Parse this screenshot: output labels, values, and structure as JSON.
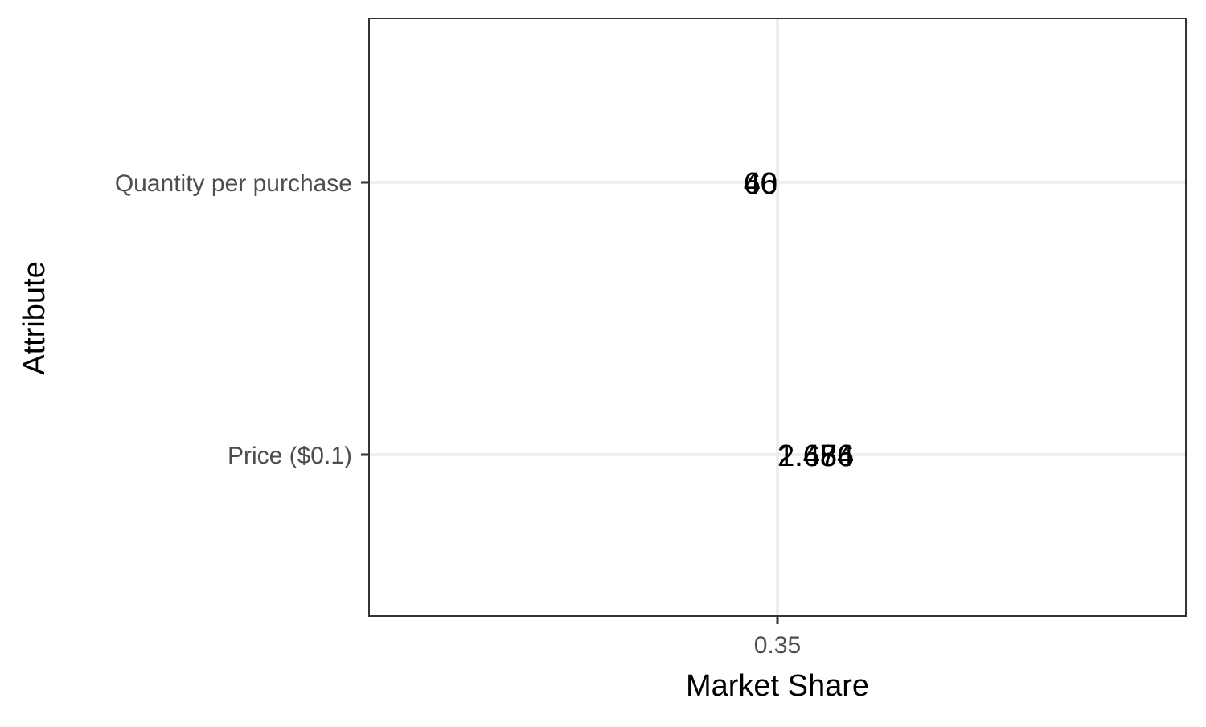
{
  "chart_data": {
    "type": "scatter",
    "title": "",
    "xlabel": "Market Share",
    "ylabel": "Attribute",
    "categories": [
      "Price ($0.1)",
      "Quantity per purchase"
    ],
    "x_ticks": [
      "0.35"
    ],
    "xlim": [
      0.3,
      0.4
    ],
    "grid": true,
    "legend": "none",
    "points": [
      {
        "category": "Quantity per purchase",
        "x": 0.35,
        "label": "6"
      },
      {
        "category": "Quantity per purchase",
        "x": 0.35,
        "label": "40"
      },
      {
        "category": "Quantity per purchase",
        "x": 0.35,
        "label": "60"
      },
      {
        "category": "Price ($0.1)",
        "x": 0.35,
        "label": "1.656"
      },
      {
        "category": "Price ($0.1)",
        "x": 0.35,
        "label": "2.486"
      },
      {
        "category": "Price ($0.1)",
        "x": 0.35,
        "label": "2.474"
      }
    ],
    "colors": {
      "grid": "#ebebeb",
      "panel_border": "#333333",
      "tick_label": "#4d4d4d",
      "text": "#000000"
    }
  }
}
